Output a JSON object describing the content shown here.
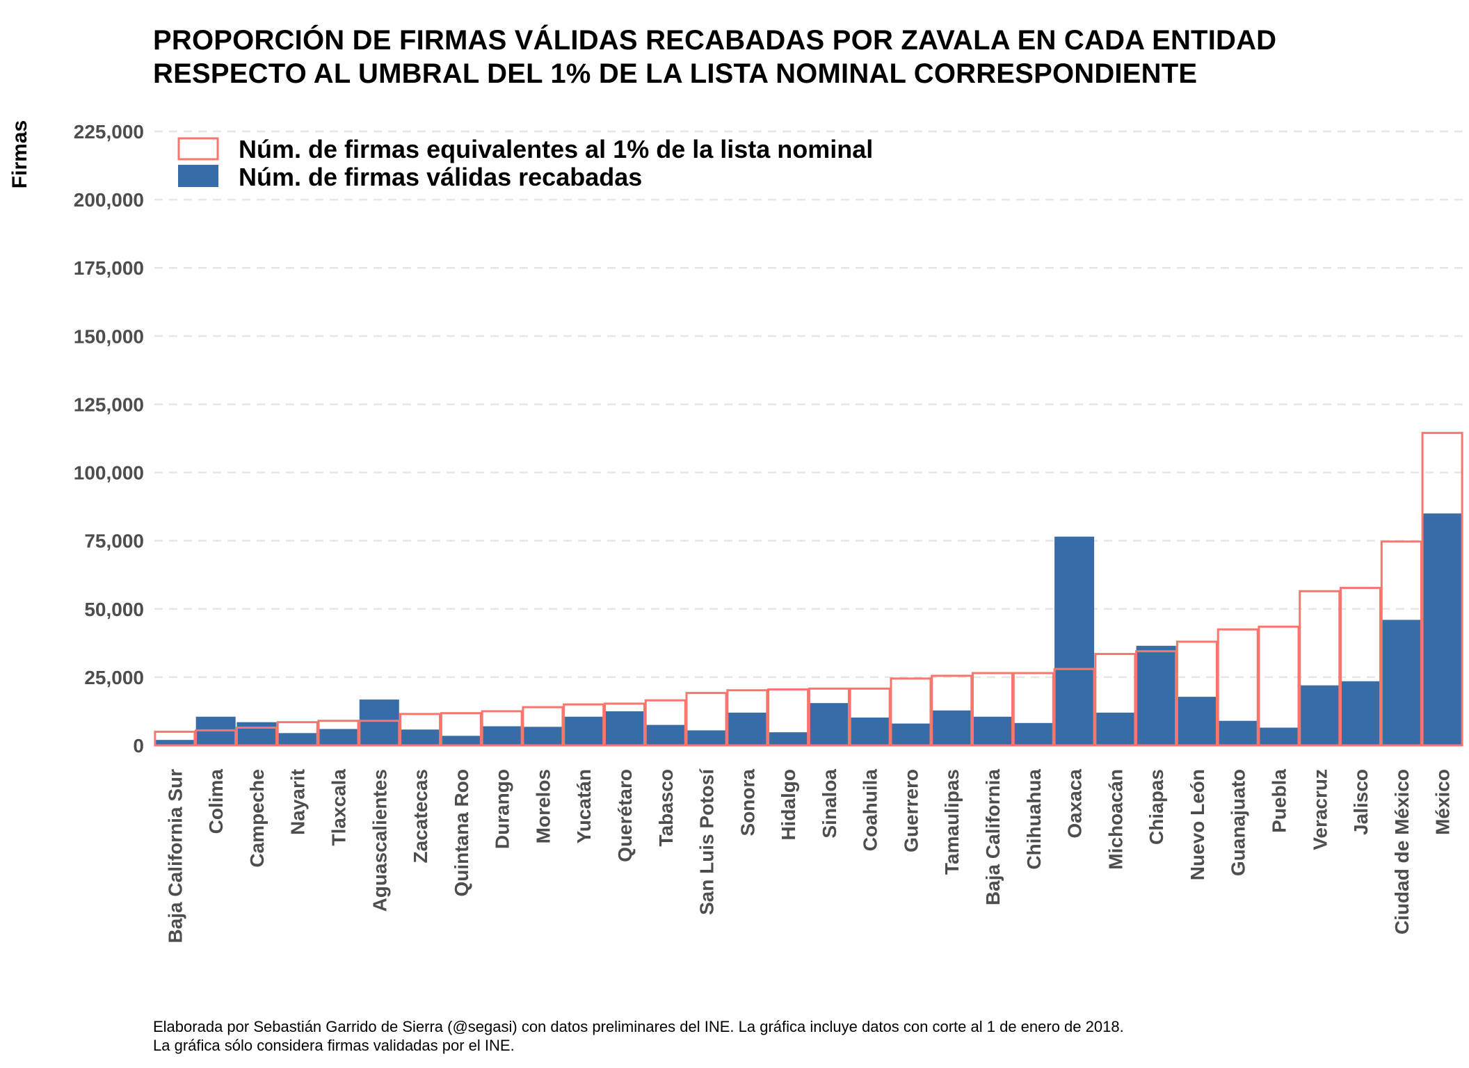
{
  "title": {
    "line1": "PROPORCIÓN DE FIRMAS VÁLIDAS RECABADAS POR ZAVALA EN CADA ENTIDAD",
    "line2": "RESPECTO AL UMBRAL DEL 1% DE LA LISTA NOMINAL CORRESPONDIENTE"
  },
  "caption": {
    "line1": "Elaborada por Sebastián Garrido de Sierra (@segasi) con datos preliminares del INE. La gráfica incluye datos con corte al 1 de enero de 2018.",
    "line2": "La gráfica sólo considera firmas validadas por el INE."
  },
  "colors": {
    "threshold_outline": "#f8766d",
    "valid_fill": "#386ca6",
    "grid": "#e6e6e6",
    "tick_text": "#4d4d4d"
  },
  "chart_data": {
    "type": "bar",
    "ylabel": "Firmas",
    "xlabel": "",
    "ylim": [
      0,
      232000
    ],
    "yticks": [
      0,
      25000,
      50000,
      75000,
      100000,
      125000,
      150000,
      175000,
      200000,
      225000
    ],
    "ytick_labels": [
      "0",
      "25,000",
      "50,000",
      "75,000",
      "100,000",
      "125,000",
      "150,000",
      "175,000",
      "200,000",
      "225,000"
    ],
    "grid": true,
    "legend_position": "top-left",
    "categories": [
      "Baja California Sur",
      "Colima",
      "Campeche",
      "Nayarit",
      "Tlaxcala",
      "Aguascalientes",
      "Zacatecas",
      "Quintana Roo",
      "Durango",
      "Morelos",
      "Yucatán",
      "Querétaro",
      "Tabasco",
      "San Luis Potosí",
      "Sonora",
      "Hidalgo",
      "Sinaloa",
      "Coahuila",
      "Guerrero",
      "Tamaulipas",
      "Baja California",
      "Chihuahua",
      "Oaxaca",
      "Michoacán",
      "Chiapas",
      "Nuevo León",
      "Guanajuato",
      "Puebla",
      "Veracruz",
      "Jalisco",
      "Ciudad de México",
      "México"
    ],
    "series": [
      {
        "name": "Núm. de firmas válidas recabadas",
        "style": "filled",
        "values": [
          2000,
          10500,
          8500,
          4500,
          6000,
          16800,
          5800,
          3500,
          7000,
          6800,
          10500,
          12500,
          7500,
          5500,
          12000,
          4800,
          15500,
          10200,
          8000,
          12800,
          10500,
          8200,
          76500,
          12000,
          36500,
          17800,
          9000,
          6500,
          22000,
          23500,
          46000,
          85000
        ]
      },
      {
        "name": "Núm. de firmas equivalentes al 1% de la lista nominal",
        "style": "outline",
        "values": [
          5000,
          5500,
          6500,
          8500,
          9000,
          9000,
          11500,
          11800,
          12500,
          14000,
          15000,
          15300,
          16500,
          19200,
          20200,
          20500,
          20800,
          20800,
          24500,
          25500,
          26500,
          26500,
          28000,
          33500,
          34500,
          38000,
          42500,
          43500,
          56500,
          57700,
          74700,
          114500
        ]
      }
    ]
  }
}
